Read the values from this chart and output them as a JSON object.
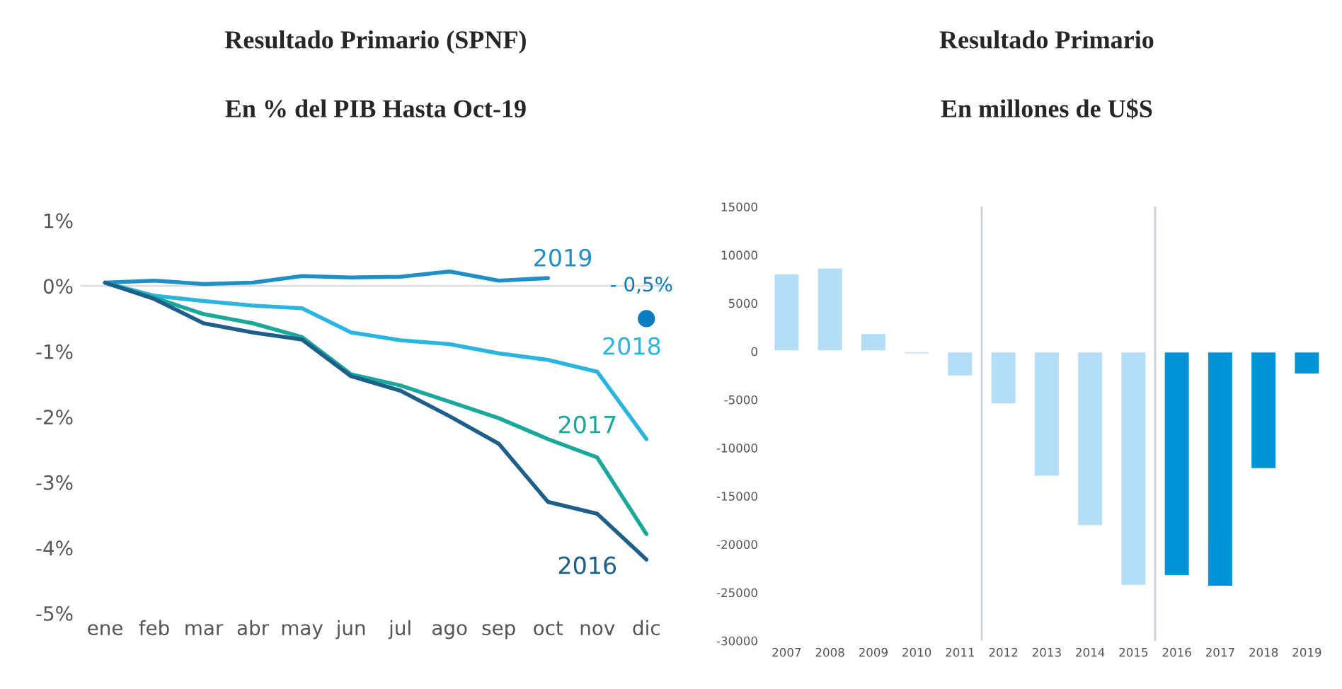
{
  "chart_data": [
    {
      "type": "line",
      "title": "Resultado Primario (SPNF)",
      "subtitle": "En % del PIB Hasta Oct-19",
      "categories": [
        "ene",
        "feb",
        "mar",
        "abr",
        "may",
        "jun",
        "jul",
        "ago",
        "sep",
        "oct",
        "nov",
        "dic"
      ],
      "series": [
        {
          "name": "2019",
          "color": "#1f8fc8",
          "values": [
            0.05,
            0.08,
            0.03,
            0.05,
            0.15,
            0.13,
            0.14,
            0.22,
            0.08,
            0.12,
            null,
            null
          ]
        },
        {
          "name": "2018",
          "color": "#2ab4e0",
          "values": [
            0.05,
            -0.15,
            -0.23,
            -0.3,
            -0.34,
            -0.71,
            -0.83,
            -0.89,
            -1.03,
            -1.13,
            -1.31,
            -2.34
          ]
        },
        {
          "name": "2017",
          "color": "#1aa89a",
          "values": [
            0.05,
            -0.18,
            -0.43,
            -0.57,
            -0.78,
            -1.35,
            -1.52,
            -1.77,
            -2.02,
            -2.34,
            -2.62,
            -3.79
          ]
        },
        {
          "name": "2016",
          "color": "#1d5f8a",
          "values": [
            0.05,
            -0.2,
            -0.57,
            -0.71,
            -0.82,
            -1.38,
            -1.6,
            -1.99,
            -2.41,
            -3.3,
            -3.48,
            -4.18
          ]
        },
        {
          "type": "scatter",
          "color": "#0a7cc4",
          "values": [
            null,
            null,
            null,
            null,
            null,
            null,
            null,
            null,
            null,
            null,
            null,
            -0.5
          ],
          "value_labels": [
            null,
            null,
            null,
            null,
            null,
            null,
            null,
            null,
            null,
            null,
            null,
            "- 0,5%"
          ]
        }
      ],
      "ylim": [
        -5,
        1
      ],
      "yticks": [
        {
          "value": 1,
          "label": "1%"
        },
        {
          "value": 0,
          "label": "0%"
        },
        {
          "value": -1,
          "label": "-1%"
        },
        {
          "value": -2,
          "label": "-2%"
        },
        {
          "value": -3,
          "label": "-3%"
        },
        {
          "value": -4,
          "label": "-4%"
        },
        {
          "value": -5,
          "label": "-5%"
        }
      ],
      "ref_lines": [
        {
          "axis": "y",
          "value": 0,
          "color": "#dddddd"
        }
      ],
      "grid": false,
      "legend": false
    },
    {
      "type": "bar",
      "title": "Resultado Primario",
      "subtitle": "En millones de U$S",
      "categories": [
        "2007",
        "2008",
        "2009",
        "2010",
        "2011",
        "2012",
        "2013",
        "2014",
        "2015",
        "2016",
        "2017",
        "2018",
        "2019"
      ],
      "values": [
        8100,
        8700,
        1900,
        -300,
        -2600,
        -5500,
        -13000,
        -18100,
        -24300,
        -23300,
        -24400,
        -12200,
        -2400
      ],
      "colors": [
        "#b3def5",
        "#b3def5",
        "#b3def5",
        "#b3def5",
        "#b3def5",
        "#b3def5",
        "#b3def5",
        "#b3def5",
        "#b3def5",
        "#0093d6",
        "#0093d6",
        "#0093d6",
        "#0093d6"
      ],
      "ylim": [
        -30000,
        15000
      ],
      "yticks": [
        15000,
        10000,
        5000,
        0,
        -5000,
        -10000,
        -15000,
        -20000,
        -25000,
        -30000
      ],
      "grid": false,
      "legend": false
    }
  ]
}
